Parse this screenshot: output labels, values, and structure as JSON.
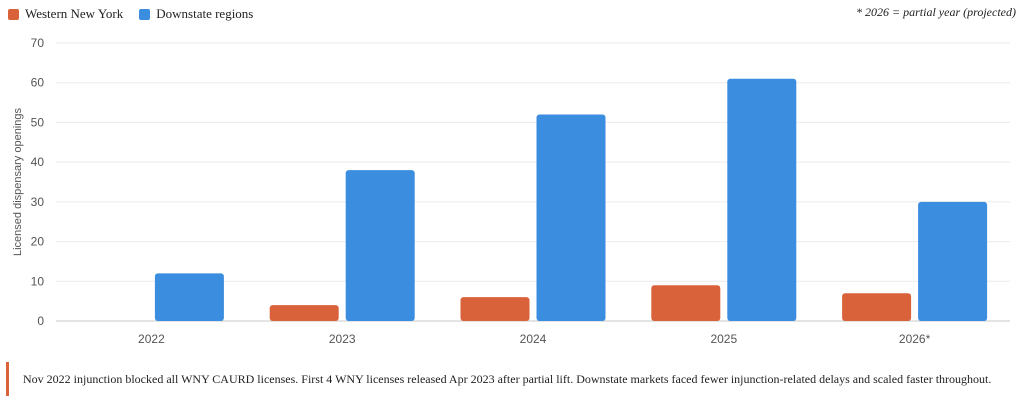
{
  "colors": {
    "wny": "#d9623b",
    "downstate": "#3a8ddf",
    "grid": "#ebebeb",
    "axis": "#c8c8c8"
  },
  "chart_data": {
    "type": "bar",
    "categories": [
      "2022",
      "2023",
      "2024",
      "2025",
      "2026*"
    ],
    "series": [
      {
        "name": "Western New York",
        "values": [
          0,
          4,
          6,
          9,
          7
        ]
      },
      {
        "name": "Downstate regions",
        "values": [
          12,
          38,
          52,
          61,
          30
        ]
      }
    ],
    "ylabel": "Licensed dispensary openings",
    "ylim": [
      0,
      70
    ],
    "yticks": [
      0,
      10,
      20,
      30,
      40,
      50,
      60,
      70
    ],
    "legend_position": "top-left",
    "grid": true,
    "note": "* 2026 = partial year (projected)"
  },
  "footnote": "Nov 2022 injunction blocked all WNY CAURD licenses. First 4 WNY licenses released Apr 2023 after partial lift. Downstate markets faced fewer injunction-related delays and scaled faster throughout."
}
